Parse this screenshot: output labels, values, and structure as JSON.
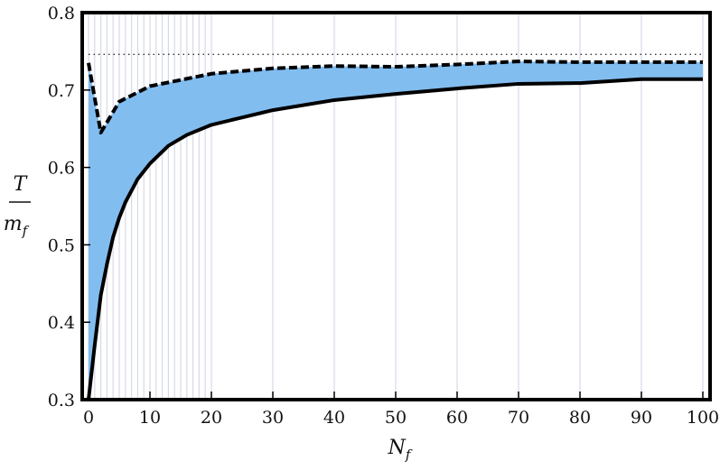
{
  "chart_data": {
    "type": "area",
    "title": "",
    "xlabel": {
      "main": "N",
      "sub": "f"
    },
    "ylabel": {
      "numerator": "T",
      "denominator_main": "m",
      "denominator_sub": "f"
    },
    "xlim": [
      0,
      100
    ],
    "ylim": [
      0.3,
      0.8
    ],
    "xticks": [
      0,
      10,
      20,
      30,
      40,
      50,
      60,
      70,
      80,
      90,
      100
    ],
    "yticks": [
      0.3,
      0.4,
      0.5,
      0.6,
      0.7,
      0.8
    ],
    "ytick_labels": [
      "0.3",
      "0.4",
      "0.5",
      "0.6",
      "0.7",
      "0.8"
    ],
    "reference_line": {
      "y": 0.746,
      "style": "dotted",
      "color": "#333333"
    },
    "fill_color": "#82bdf0",
    "gridline_color": "#d7d9e8",
    "gridline_x": [
      0,
      1,
      2,
      3,
      4,
      5,
      6,
      7,
      8,
      9,
      10,
      11,
      12,
      13,
      14,
      15,
      16,
      17,
      18,
      19,
      20,
      30,
      40,
      50,
      60,
      70,
      80,
      90,
      100
    ],
    "series": [
      {
        "role": "upper",
        "style": "dashed",
        "x": [
          0,
          2,
          5,
          10,
          20,
          30,
          40,
          50,
          60,
          70,
          80,
          90,
          100
        ],
        "values": [
          0.735,
          0.645,
          0.685,
          0.705,
          0.721,
          0.728,
          0.731,
          0.73,
          0.733,
          0.737,
          0.736,
          0.736,
          0.736
        ]
      },
      {
        "role": "lower",
        "style": "solid",
        "x": [
          0,
          1,
          2,
          3,
          4,
          5,
          6,
          8,
          10,
          13,
          16,
          20,
          30,
          40,
          50,
          60,
          70,
          80,
          90,
          100
        ],
        "values": [
          0.3,
          0.37,
          0.435,
          0.475,
          0.51,
          0.535,
          0.555,
          0.585,
          0.605,
          0.628,
          0.642,
          0.655,
          0.674,
          0.687,
          0.695,
          0.702,
          0.708,
          0.709,
          0.714,
          0.714
        ]
      }
    ]
  }
}
